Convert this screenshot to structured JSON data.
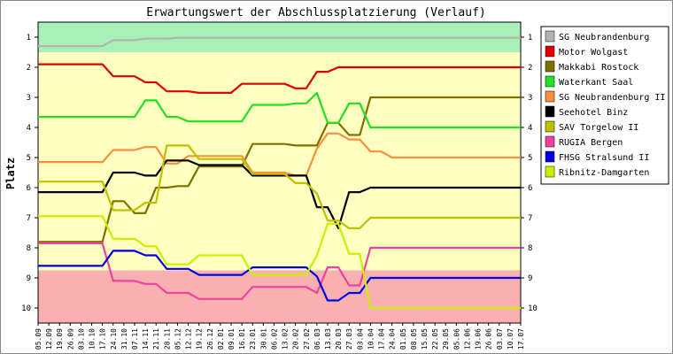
{
  "chart_data": {
    "type": "line",
    "title": "Erwartungswert der Abschlussplatzierung (Verlauf)",
    "ylabel": "Platz",
    "xlabel": "",
    "ylim": [
      0.5,
      10.5
    ],
    "y_inverted": true,
    "y_ticks": [
      1,
      2,
      3,
      4,
      5,
      6,
      7,
      8,
      9,
      10
    ],
    "grid": false,
    "legend_position": "right",
    "zones": [
      {
        "from": 0.5,
        "to": 1.5,
        "color": "#a8f0b8"
      },
      {
        "from": 1.5,
        "to": 8.75,
        "color": "#ffffc0"
      },
      {
        "from": 8.75,
        "to": 10.5,
        "color": "#f8b0b0"
      }
    ],
    "categories": [
      "05.09",
      "12.09",
      "19.09",
      "26.09",
      "03.10",
      "10.10",
      "17.10",
      "24.10",
      "31.10",
      "07.11",
      "14.11",
      "21.11",
      "28.11",
      "05.12",
      "12.12",
      "19.12",
      "26.12",
      "02.01",
      "09.01",
      "16.01",
      "23.01",
      "30.01",
      "06.02",
      "13.02",
      "20.02",
      "27.02",
      "06.03",
      "13.03",
      "20.03",
      "27.03",
      "03.04",
      "10.04",
      "17.04",
      "24.04",
      "01.05",
      "08.05",
      "15.05",
      "22.05",
      "29.05",
      "05.06",
      "12.06",
      "19.06",
      "26.06",
      "03.07",
      "10.07",
      "17.07"
    ],
    "series": [
      {
        "name": "SG Neubrandenburg",
        "color": "#b4b4b4",
        "values": [
          1.3,
          1.3,
          1.3,
          1.3,
          1.3,
          1.3,
          1.3,
          1.1,
          1.1,
          1.1,
          1.05,
          1.05,
          1.05,
          1.02,
          1.02,
          1.02,
          1.02,
          1.02,
          1.02,
          1.02,
          1.02,
          1.02,
          1.02,
          1.02,
          1.02,
          1.02,
          1.02,
          1.02,
          1.02,
          1.02,
          1.02,
          1.02,
          1.02,
          1.02,
          1.02,
          1.02,
          1.02,
          1.02,
          1.02,
          1.02,
          1.02,
          1.02,
          1.02,
          1.02,
          1.02,
          1.02
        ]
      },
      {
        "name": "Motor Wolgast",
        "color": "#e00000",
        "values": [
          1.9,
          1.9,
          1.9,
          1.9,
          1.9,
          1.9,
          1.9,
          2.3,
          2.3,
          2.3,
          2.5,
          2.5,
          2.8,
          2.8,
          2.8,
          2.85,
          2.85,
          2.85,
          2.85,
          2.55,
          2.55,
          2.55,
          2.55,
          2.55,
          2.7,
          2.7,
          2.15,
          2.15,
          2.0,
          2.0,
          2.0,
          2.0,
          2.0,
          2.0,
          2.0,
          2.0,
          2.0,
          2.0,
          2.0,
          2.0,
          2.0,
          2.0,
          2.0,
          2.0,
          2.0,
          2.0
        ]
      },
      {
        "name": "Makkabi Rostock",
        "color": "#807000",
        "values": [
          7.8,
          7.8,
          7.8,
          7.8,
          7.8,
          7.8,
          7.8,
          6.45,
          6.45,
          6.85,
          6.85,
          6.0,
          6.0,
          5.95,
          5.95,
          5.3,
          5.3,
          5.3,
          5.3,
          5.3,
          4.55,
          4.55,
          4.55,
          4.55,
          4.6,
          4.6,
          4.6,
          3.85,
          3.85,
          4.25,
          4.25,
          3.0,
          3.0,
          3.0,
          3.0,
          3.0,
          3.0,
          3.0,
          3.0,
          3.0,
          3.0,
          3.0,
          3.0,
          3.0,
          3.0,
          3.0
        ]
      },
      {
        "name": "Waterkant Saal",
        "color": "#20e020",
        "values": [
          3.65,
          3.65,
          3.65,
          3.65,
          3.65,
          3.65,
          3.65,
          3.65,
          3.65,
          3.65,
          3.1,
          3.1,
          3.65,
          3.65,
          3.8,
          3.8,
          3.8,
          3.8,
          3.8,
          3.8,
          3.25,
          3.25,
          3.25,
          3.25,
          3.2,
          3.2,
          2.85,
          3.85,
          3.85,
          3.2,
          3.2,
          4.0,
          4.0,
          4.0,
          4.0,
          4.0,
          4.0,
          4.0,
          4.0,
          4.0,
          4.0,
          4.0,
          4.0,
          4.0,
          4.0,
          4.0
        ]
      },
      {
        "name": "SG Neubrandenburg II",
        "color": "#f89040",
        "values": [
          5.15,
          5.15,
          5.15,
          5.15,
          5.15,
          5.15,
          5.15,
          4.75,
          4.75,
          4.75,
          4.65,
          4.65,
          5.2,
          5.2,
          4.95,
          4.95,
          4.95,
          4.95,
          4.95,
          4.95,
          5.5,
          5.5,
          5.5,
          5.5,
          5.6,
          5.6,
          4.7,
          4.2,
          4.2,
          4.4,
          4.4,
          4.8,
          4.8,
          5.0,
          5.0,
          5.0,
          5.0,
          5.0,
          5.0,
          5.0,
          5.0,
          5.0,
          5.0,
          5.0,
          5.0,
          5.0
        ]
      },
      {
        "name": "Seehotel Binz",
        "color": "#000000",
        "values": [
          6.15,
          6.15,
          6.15,
          6.15,
          6.15,
          6.15,
          6.15,
          5.5,
          5.5,
          5.5,
          5.6,
          5.6,
          5.1,
          5.1,
          5.1,
          5.25,
          5.25,
          5.25,
          5.25,
          5.25,
          5.6,
          5.6,
          5.6,
          5.6,
          5.6,
          5.6,
          6.65,
          6.65,
          7.35,
          6.15,
          6.15,
          6.0,
          6.0,
          6.0,
          6.0,
          6.0,
          6.0,
          6.0,
          6.0,
          6.0,
          6.0,
          6.0,
          6.0,
          6.0,
          6.0,
          6.0
        ]
      },
      {
        "name": "SAV Torgelow II",
        "color": "#c0c000",
        "values": [
          5.8,
          5.8,
          5.8,
          5.8,
          5.8,
          5.8,
          5.8,
          6.75,
          6.75,
          6.75,
          6.5,
          6.5,
          4.6,
          4.6,
          4.6,
          5.05,
          5.05,
          5.05,
          5.05,
          5.05,
          5.55,
          5.55,
          5.55,
          5.55,
          5.85,
          5.85,
          6.2,
          7.1,
          7.1,
          7.35,
          7.35,
          7.0,
          7.0,
          7.0,
          7.0,
          7.0,
          7.0,
          7.0,
          7.0,
          7.0,
          7.0,
          7.0,
          7.0,
          7.0,
          7.0,
          7.0
        ]
      },
      {
        "name": "RUGIA Bergen",
        "color": "#f040a0",
        "values": [
          7.85,
          7.85,
          7.85,
          7.85,
          7.85,
          7.85,
          7.85,
          9.1,
          9.1,
          9.1,
          9.2,
          9.2,
          9.5,
          9.5,
          9.5,
          9.7,
          9.7,
          9.7,
          9.7,
          9.7,
          9.3,
          9.3,
          9.3,
          9.3,
          9.3,
          9.3,
          9.5,
          8.65,
          8.65,
          9.25,
          9.25,
          8.0,
          8.0,
          8.0,
          8.0,
          8.0,
          8.0,
          8.0,
          8.0,
          8.0,
          8.0,
          8.0,
          8.0,
          8.0,
          8.0,
          8.0
        ]
      },
      {
        "name": "FHSG Stralsund II",
        "color": "#0000e0",
        "values": [
          8.6,
          8.6,
          8.6,
          8.6,
          8.6,
          8.6,
          8.6,
          8.1,
          8.1,
          8.1,
          8.25,
          8.25,
          8.7,
          8.7,
          8.7,
          8.9,
          8.9,
          8.9,
          8.9,
          8.9,
          8.65,
          8.65,
          8.65,
          8.65,
          8.65,
          8.65,
          8.95,
          9.75,
          9.75,
          9.5,
          9.5,
          9.0,
          9.0,
          9.0,
          9.0,
          9.0,
          9.0,
          9.0,
          9.0,
          9.0,
          9.0,
          9.0,
          9.0,
          9.0,
          9.0,
          9.0
        ]
      },
      {
        "name": "Ribnitz-Damgarten",
        "color": "#c8f000",
        "values": [
          6.95,
          6.95,
          6.95,
          6.95,
          6.95,
          6.95,
          6.95,
          7.7,
          7.7,
          7.7,
          7.95,
          7.95,
          8.55,
          8.55,
          8.55,
          8.25,
          8.25,
          8.25,
          8.25,
          8.25,
          8.9,
          8.9,
          8.9,
          8.9,
          8.9,
          8.9,
          8.25,
          7.2,
          7.2,
          8.2,
          8.2,
          10.0,
          10.0,
          10.0,
          10.0,
          10.0,
          10.0,
          10.0,
          10.0,
          10.0,
          10.0,
          10.0,
          10.0,
          10.0,
          10.0,
          10.0
        ]
      }
    ]
  }
}
